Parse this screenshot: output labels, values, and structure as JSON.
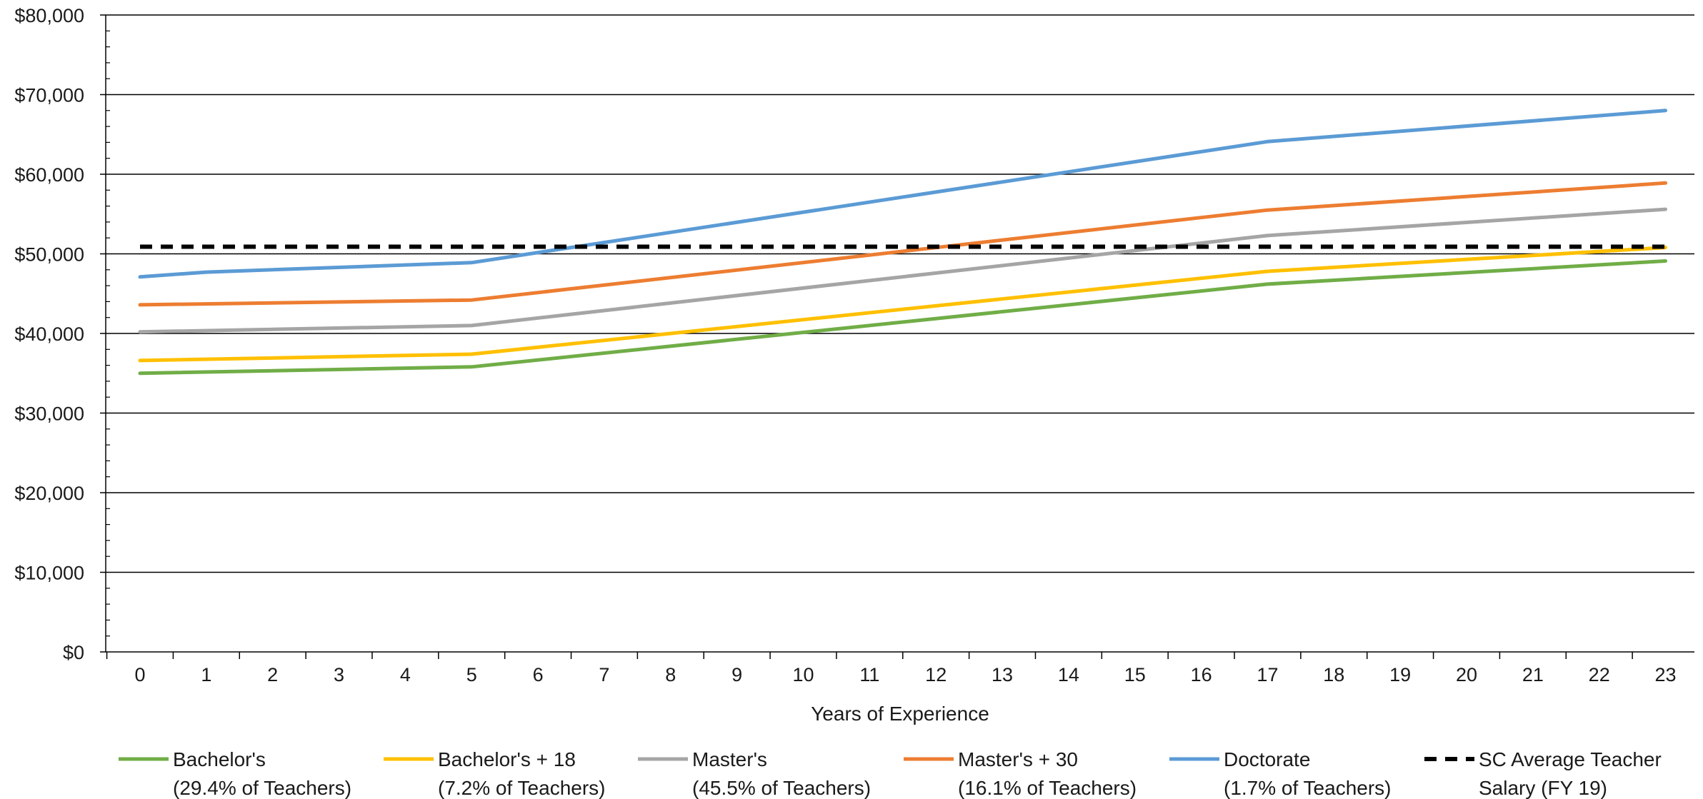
{
  "chart_data": {
    "type": "line",
    "title": "",
    "xlabel": "Years of Experience",
    "ylabel": "",
    "x": [
      0,
      1,
      2,
      3,
      4,
      5,
      6,
      7,
      8,
      9,
      10,
      11,
      12,
      13,
      14,
      15,
      16,
      17,
      18,
      19,
      20,
      21,
      22,
      23
    ],
    "ylim": [
      0,
      80000
    ],
    "y_ticks": [
      "$0",
      "$10,000",
      "$20,000",
      "$30,000",
      "$40,000",
      "$50,000",
      "$60,000",
      "$70,000",
      "$80,000"
    ],
    "grid": "horizontal",
    "legend_position": "bottom",
    "series": [
      {
        "name": "Bachelor's",
        "legend_line1": "Bachelor's",
        "legend_line2": "(29.4% of Teachers)",
        "color": "#70ad47",
        "dashed": false,
        "x": [
          0,
          5,
          17,
          23
        ],
        "values": [
          35000,
          35800,
          46200,
          49100
        ]
      },
      {
        "name": "Bachelor's + 18",
        "legend_line1": "Bachelor's + 18",
        "legend_line2": "(7.2% of Teachers)",
        "color": "#ffc000",
        "dashed": false,
        "x": [
          0,
          5,
          17,
          23
        ],
        "values": [
          36600,
          37400,
          47800,
          50800
        ]
      },
      {
        "name": "Master's",
        "legend_line1": "Master's",
        "legend_line2": "(45.5% of Teachers)",
        "color": "#a5a5a5",
        "dashed": false,
        "x": [
          0,
          5,
          17,
          23
        ],
        "values": [
          40200,
          41000,
          52300,
          55600
        ]
      },
      {
        "name": "Master's + 30",
        "legend_line1": "Master's + 30",
        "legend_line2": "(16.1% of Teachers)",
        "color": "#ed7d31",
        "dashed": false,
        "x": [
          0,
          5,
          17,
          23
        ],
        "values": [
          43600,
          44200,
          55500,
          58900
        ]
      },
      {
        "name": "Doctorate",
        "legend_line1": "Doctorate",
        "legend_line2": "(1.7% of Teachers)",
        "color": "#5b9bd5",
        "dashed": false,
        "x": [
          0,
          1,
          5,
          17,
          23
        ],
        "values": [
          47100,
          47700,
          48900,
          64100,
          68000
        ]
      },
      {
        "name": "SC Average Teacher Salary (FY 19)",
        "legend_line1": "SC Average Teacher",
        "legend_line2": "Salary (FY 19)",
        "color": "#000000",
        "dashed": true,
        "x": [
          0,
          23
        ],
        "values": [
          50900,
          50900
        ]
      }
    ]
  }
}
